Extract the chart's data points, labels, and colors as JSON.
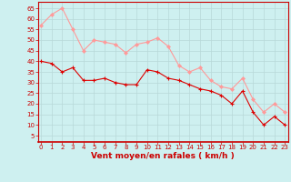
{
  "x": [
    0,
    1,
    2,
    3,
    4,
    5,
    6,
    7,
    8,
    9,
    10,
    11,
    12,
    13,
    14,
    15,
    16,
    17,
    18,
    19,
    20,
    21,
    22,
    23
  ],
  "vent_moyen": [
    40,
    39,
    35,
    37,
    31,
    31,
    32,
    30,
    29,
    29,
    36,
    35,
    32,
    31,
    29,
    27,
    26,
    24,
    20,
    26,
    16,
    10,
    14,
    10
  ],
  "rafales": [
    57,
    62,
    65,
    55,
    45,
    50,
    49,
    48,
    44,
    48,
    49,
    51,
    47,
    38,
    35,
    37,
    31,
    28,
    27,
    32,
    22,
    16,
    20,
    16
  ],
  "bg_color": "#cef0f0",
  "grid_color": "#b8d8d8",
  "line_mean_color": "#dd0000",
  "line_gust_color": "#ff9999",
  "axis_label_color": "#cc0000",
  "tick_color": "#cc0000",
  "xlabel": "Vent moyen/en rafales ( km/h )",
  "ylabel_ticks": [
    5,
    10,
    15,
    20,
    25,
    30,
    35,
    40,
    45,
    50,
    55,
    60,
    65
  ],
  "ylim": [
    2,
    68
  ],
  "xlim": [
    -0.3,
    23.3
  ],
  "xlabel_fontsize": 6.5,
  "tick_fontsize": 5
}
